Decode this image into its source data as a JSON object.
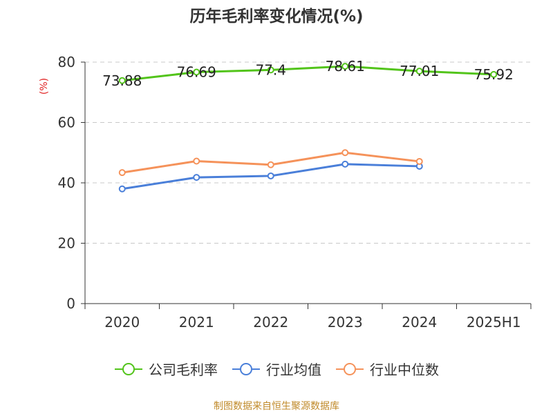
{
  "chart_data": {
    "type": "line",
    "title": "历年毛利率变化情况(%)",
    "ylabel": "(%)",
    "xlabel": "",
    "categories": [
      "2020",
      "2021",
      "2022",
      "2023",
      "2024",
      "2025H1"
    ],
    "ylim": [
      0,
      80
    ],
    "yticks": [
      0,
      20,
      40,
      60,
      80
    ],
    "grid": true,
    "legend_position": "bottom",
    "series": [
      {
        "name": "公司毛利率",
        "color": "#52c41a",
        "values": [
          73.88,
          76.69,
          77.4,
          78.61,
          77.01,
          75.92
        ],
        "labels": [
          "73.88",
          "76.69",
          "77.4",
          "78.61",
          "77.01",
          "75.92"
        ]
      },
      {
        "name": "行业均值",
        "color": "#4a7fd9",
        "values": [
          38.0,
          41.8,
          42.3,
          46.2,
          45.5,
          null
        ],
        "labels": []
      },
      {
        "name": "行业中位数",
        "color": "#f5925a",
        "values": [
          43.4,
          47.2,
          46.0,
          50.0,
          47.1,
          null
        ],
        "labels": []
      }
    ]
  },
  "source_note": "制图数据来自恒生聚源数据库"
}
